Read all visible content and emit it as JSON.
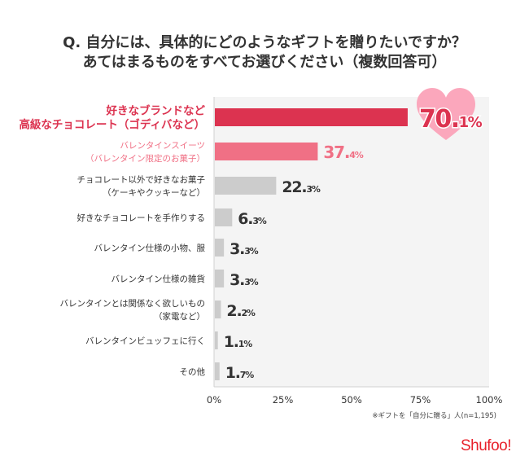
{
  "header": {
    "title_line1": "Q. 自分には、具体的にどのようなギフトを贈りたいですか？",
    "title_line2": "あてはまるものをすべてお選びください（複数回答可）"
  },
  "colors": {
    "highlight_1": "#dc3350",
    "highlight_2": "#f07085",
    "default_bar": "#cccccc",
    "plot_bg": "#f4f4f4",
    "heart": "#fba7bc",
    "logo": "#e8202a"
  },
  "chart_data": {
    "type": "bar",
    "orientation": "horizontal",
    "title": "Q. 自分には、具体的にどのようなギフトを贈りたいですか？ あてはまるものをすべてお選びください（複数回答可）",
    "xlabel": "",
    "ylabel": "",
    "xlim": [
      0,
      100
    ],
    "grid": false,
    "x_ticks": [
      "0%",
      "25%",
      "50%",
      "75%",
      "100%"
    ],
    "x_tick_values": [
      0,
      25,
      50,
      75,
      100
    ],
    "categories": [
      [
        "好きなブランドなど",
        "高級なチョコレート（ゴディバなど）"
      ],
      [
        "バレンタインスイーツ",
        "（バレンタイン限定のお菓子）"
      ],
      [
        "チョコレート以外で好きなお菓子",
        "（ケーキやクッキーなど）"
      ],
      [
        "好きなチョコレートを手作りする"
      ],
      [
        "バレンタイン仕様の小物、服"
      ],
      [
        "バレンタイン仕様の雑貨"
      ],
      [
        "バレンタインとは関係なく欲しいもの",
        "（家電など）"
      ],
      [
        "バレンタインビュッフェに行く"
      ],
      [
        "その他"
      ]
    ],
    "values": [
      70.1,
      37.4,
      22.3,
      6.3,
      3.3,
      3.3,
      2.2,
      1.1,
      1.7
    ],
    "value_labels": [
      {
        "int": "70.",
        "dec": "1%"
      },
      {
        "int": "37.",
        "dec": "4%"
      },
      {
        "int": "22.",
        "dec": "3%"
      },
      {
        "int": "6.",
        "dec": "3%"
      },
      {
        "int": "3.",
        "dec": "3%"
      },
      {
        "int": "3.",
        "dec": "3%"
      },
      {
        "int": "2.",
        "dec": "2%"
      },
      {
        "int": "1.",
        "dec": "1%"
      },
      {
        "int": "1.",
        "dec": "7%"
      }
    ],
    "highlight": [
      1,
      2,
      0,
      0,
      0,
      0,
      0,
      0,
      0
    ]
  },
  "footnote": "※ギフトを「自分に贈る」人(n=1,195)",
  "logo_text": "Shufoo!"
}
